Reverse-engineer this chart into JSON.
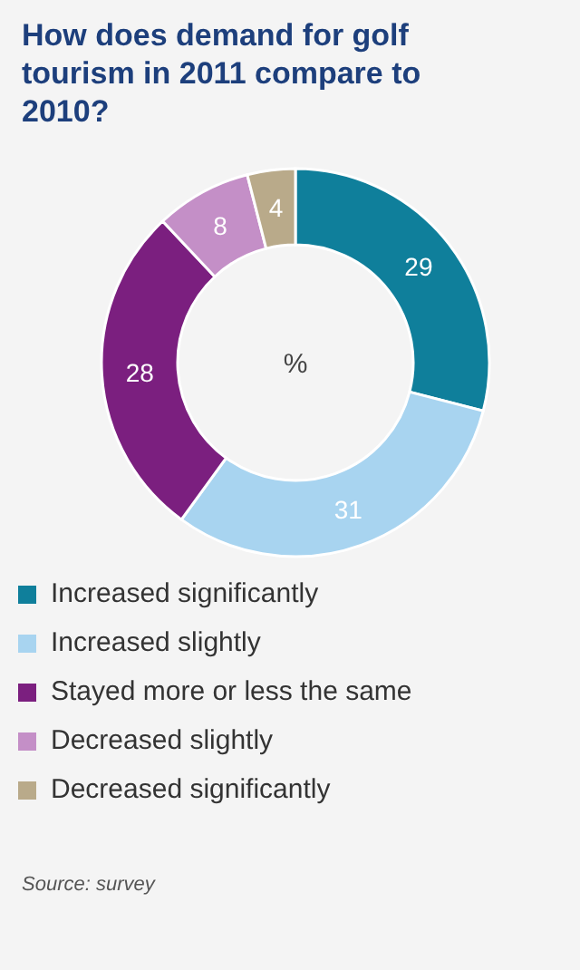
{
  "chart_data": {
    "type": "donut",
    "title": "How does demand for golf tourism in 2011 compare to 2010?",
    "categories": [
      "Increased significantly",
      "Increased slightly",
      "Stayed more or less the same",
      "Decreased slightly",
      "Decreased significantly"
    ],
    "values": [
      29,
      31,
      28,
      8,
      4
    ],
    "colors": [
      "#0f7f9b",
      "#a8d4f0",
      "#7b1f7f",
      "#c48fc7",
      "#b9aa8a"
    ],
    "data_labels": true,
    "legend": "bottom",
    "annotations": [
      "%",
      "Source: survey"
    ]
  }
}
